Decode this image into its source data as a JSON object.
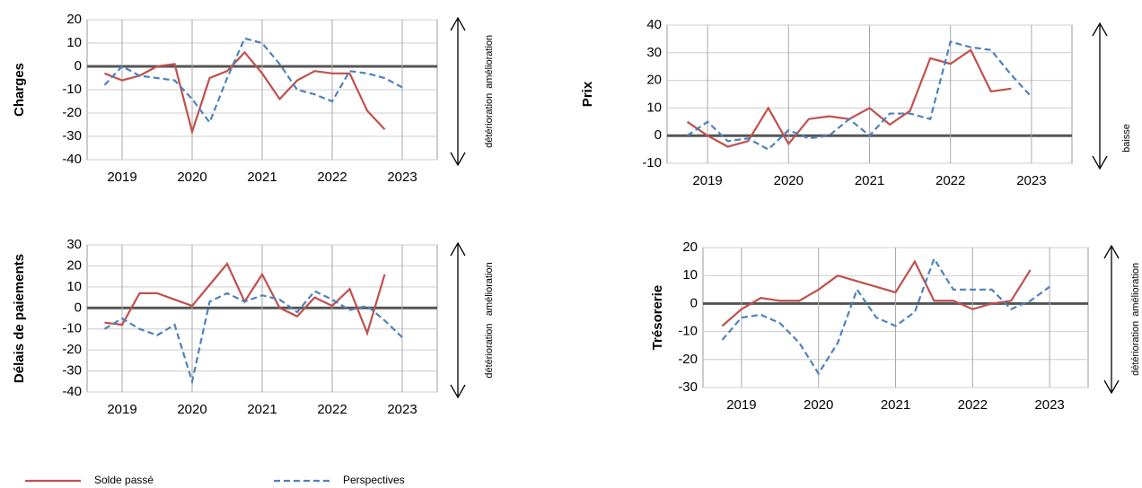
{
  "chart_data": [
    {
      "type": "line",
      "ylabel": "Charges",
      "annotations": [
        "amélioration",
        "détérioration"
      ],
      "x": [
        2018.75,
        2019.0,
        2019.25,
        2019.5,
        2019.75,
        2020.0,
        2020.25,
        2020.5,
        2020.75,
        2021.0,
        2021.25,
        2021.5,
        2021.75,
        2022.0,
        2022.25,
        2022.5,
        2022.75,
        2023.0
      ],
      "xlim": [
        2018.5,
        2023.5
      ],
      "xticks": [
        2019,
        2020,
        2021,
        2022,
        2023
      ],
      "ylim": [
        -40,
        20
      ],
      "yticks": [
        -40,
        -30,
        -20,
        -10,
        0,
        10,
        20
      ],
      "grid": true,
      "legend": "bottom-left",
      "series": [
        {
          "name": "Solde passé",
          "color": "#c0504d",
          "style": "solid",
          "values": [
            -3,
            -6,
            -4,
            0,
            1,
            -28,
            -5,
            -2,
            6,
            -3,
            -14,
            -6,
            -2,
            -3,
            -3,
            -19,
            -27,
            null
          ]
        },
        {
          "name": "Perspectives",
          "color": "#4f81bd",
          "style": "dashed",
          "values": [
            -8,
            0,
            -4,
            -5,
            -6,
            -14,
            -24,
            -5,
            12,
            10,
            1,
            -10,
            -12,
            -15,
            -2,
            -3,
            -5,
            -9
          ]
        }
      ]
    },
    {
      "type": "line",
      "ylabel": "Prix",
      "annotations": [
        "baisse"
      ],
      "x": [
        2018.75,
        2019.0,
        2019.25,
        2019.5,
        2019.75,
        2020.0,
        2020.25,
        2020.5,
        2020.75,
        2021.0,
        2021.25,
        2021.5,
        2021.75,
        2022.0,
        2022.25,
        2022.5,
        2022.75,
        2023.0
      ],
      "xlim": [
        2018.5,
        2023.5
      ],
      "xticks": [
        2019,
        2020,
        2021,
        2022,
        2023
      ],
      "ylim": [
        -10,
        40
      ],
      "yticks": [
        -10,
        0,
        10,
        20,
        30,
        40
      ],
      "grid": true,
      "series": [
        {
          "name": "Solde passé",
          "color": "#c0504d",
          "style": "solid",
          "values": [
            5,
            0,
            -4,
            -2,
            10,
            -3,
            6,
            7,
            6,
            10,
            4,
            9,
            28,
            26,
            31,
            16,
            17,
            null
          ]
        },
        {
          "name": "Perspectives",
          "color": "#4f81bd",
          "style": "dashed",
          "values": [
            0,
            5,
            -2,
            -1,
            -5,
            2,
            -1,
            0,
            6,
            0,
            8,
            8,
            6,
            34,
            32,
            31,
            22,
            14
          ]
        }
      ]
    },
    {
      "type": "line",
      "ylabel": "Délais de paiements",
      "annotations": [
        "amélioration",
        "détérioration"
      ],
      "x": [
        2018.75,
        2019.0,
        2019.25,
        2019.5,
        2019.75,
        2020.0,
        2020.25,
        2020.5,
        2020.75,
        2021.0,
        2021.25,
        2021.5,
        2021.75,
        2022.0,
        2022.25,
        2022.5,
        2022.75,
        2023.0
      ],
      "xlim": [
        2018.5,
        2023.5
      ],
      "xticks": [
        2019,
        2020,
        2021,
        2022,
        2023
      ],
      "ylim": [
        -40,
        30
      ],
      "yticks": [
        -40,
        -30,
        -20,
        -10,
        0,
        10,
        20,
        30
      ],
      "grid": true,
      "series": [
        {
          "name": "Solde passé",
          "color": "#c0504d",
          "style": "solid",
          "values": [
            -7,
            -8,
            7,
            7,
            4,
            1,
            11,
            21,
            3,
            16,
            0,
            -4,
            5,
            1,
            9,
            -12,
            16,
            null
          ]
        },
        {
          "name": "Perspectives",
          "color": "#4f81bd",
          "style": "dashed",
          "values": [
            -10,
            -5,
            -10,
            -13,
            -8,
            -35,
            3,
            7,
            3,
            6,
            4,
            -2,
            8,
            4,
            -1,
            1,
            -6,
            -14
          ]
        }
      ]
    },
    {
      "type": "line",
      "ylabel": "Trésorerie",
      "annotations": [
        "amélioration",
        "détérioration"
      ],
      "x": [
        2018.75,
        2019.0,
        2019.25,
        2019.5,
        2019.75,
        2020.0,
        2020.25,
        2020.5,
        2020.75,
        2021.0,
        2021.25,
        2021.5,
        2021.75,
        2022.0,
        2022.25,
        2022.5,
        2022.75,
        2023.0
      ],
      "xlim": [
        2018.5,
        2023.5
      ],
      "xticks": [
        2019,
        2020,
        2021,
        2022,
        2023
      ],
      "ylim": [
        -30,
        20
      ],
      "yticks": [
        -30,
        -20,
        -10,
        0,
        10,
        20
      ],
      "grid": true,
      "series": [
        {
          "name": "Solde passé",
          "color": "#c0504d",
          "style": "solid",
          "values": [
            -8,
            -2,
            2,
            1,
            1,
            5,
            10,
            8,
            6,
            4,
            15,
            1,
            1,
            -2,
            0,
            1,
            12,
            null
          ]
        },
        {
          "name": "Perspectives",
          "color": "#4f81bd",
          "style": "dashed",
          "values": [
            -13,
            -5,
            -4,
            -7,
            -14,
            -25,
            -14,
            5,
            -5,
            -8,
            -3,
            16,
            5,
            5,
            5,
            -2,
            1,
            6
          ]
        }
      ]
    }
  ]
}
